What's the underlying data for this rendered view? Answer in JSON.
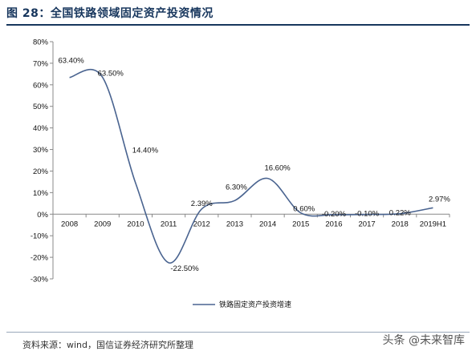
{
  "figure": {
    "title": "图 28：全国铁路领域固定资产投资情况",
    "source": "资料来源：wind，国信证券经济研究所整理",
    "watermark": "头条 @未来智库"
  },
  "chart_data": {
    "type": "line",
    "categories": [
      "2008",
      "2009",
      "2010",
      "2011",
      "2012",
      "2013",
      "2014",
      "2015",
      "2016",
      "2017",
      "2018",
      "2019H1"
    ],
    "series": [
      {
        "name": "铁路固定资产投资增速",
        "values": [
          63.4,
          63.5,
          14.4,
          -22.5,
          2.39,
          6.3,
          16.6,
          0.6,
          -0.2,
          -0.1,
          0.22,
          2.97
        ],
        "labels": [
          "63.40%",
          "63.50%",
          "14.40%",
          "-22.50%",
          "2.39%",
          "6.30%",
          "16.60%",
          "0.60%",
          "-0.20%",
          "-0.10%",
          "0.22%",
          "2.97%"
        ]
      }
    ],
    "yticks": [
      "80%",
      "70%",
      "60%",
      "50%",
      "40%",
      "30%",
      "20%",
      "10%",
      "0%",
      "-10%",
      "-20%",
      "-30%"
    ],
    "ylim": [
      -30,
      80
    ],
    "grid": false,
    "legend_position": "bottom",
    "line_color": "#4a6490"
  }
}
